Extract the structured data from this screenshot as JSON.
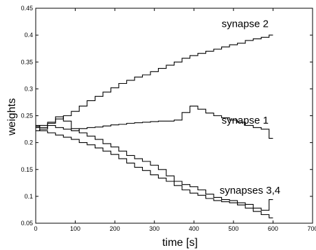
{
  "chart_data": {
    "type": "line",
    "title": "",
    "xlabel": "time [s]",
    "ylabel": "weights",
    "xlim": [
      0,
      700
    ],
    "ylim": [
      0.05,
      0.45
    ],
    "x_ticks": [
      "0",
      "100",
      "200",
      "300",
      "400",
      "500",
      "600",
      "700"
    ],
    "y_ticks": [
      "0.05",
      "0.1",
      "0.15",
      "0.2",
      "0.25",
      "0.3",
      "0.35",
      "0.4",
      "0.45"
    ],
    "grid": false,
    "legend": "none",
    "line_color": "#000000",
    "annotations": [
      {
        "text": "synapse 2",
        "x": 470,
        "y": 0.415
      },
      {
        "text": "synapse 1",
        "x": 470,
        "y": 0.235
      },
      {
        "text": "synapses 3,4",
        "x": 465,
        "y": 0.105
      }
    ],
    "series": [
      {
        "x": [
          0,
          20,
          40,
          60,
          80,
          100,
          120,
          140,
          160,
          180,
          200,
          220,
          240,
          260,
          280,
          300,
          320,
          340,
          360,
          380,
          400,
          420,
          440,
          460,
          480,
          500,
          520,
          540,
          560,
          580,
          600
        ],
        "values": [
          0.23,
          0.228,
          0.232,
          0.228,
          0.225,
          0.222,
          0.226,
          0.228,
          0.229,
          0.231,
          0.233,
          0.234,
          0.236,
          0.237,
          0.238,
          0.239,
          0.24,
          0.24,
          0.242,
          0.256,
          0.268,
          0.262,
          0.255,
          0.25,
          0.246,
          0.242,
          0.238,
          0.232,
          0.228,
          0.225,
          0.208
        ]
      },
      {
        "x": [
          0,
          20,
          40,
          60,
          80,
          100,
          120,
          140,
          160,
          180,
          200,
          220,
          240,
          260,
          280,
          300,
          320,
          340,
          360,
          380,
          400,
          420,
          440,
          460,
          480,
          500,
          520,
          540,
          560,
          580,
          600
        ],
        "values": [
          0.228,
          0.232,
          0.238,
          0.244,
          0.25,
          0.258,
          0.268,
          0.278,
          0.286,
          0.294,
          0.302,
          0.31,
          0.316,
          0.322,
          0.326,
          0.332,
          0.338,
          0.344,
          0.35,
          0.357,
          0.362,
          0.366,
          0.37,
          0.374,
          0.378,
          0.382,
          0.385,
          0.39,
          0.393,
          0.396,
          0.4
        ]
      },
      {
        "x": [
          0,
          20,
          40,
          60,
          80,
          100,
          120,
          140,
          160,
          180,
          200,
          220,
          240,
          260,
          280,
          300,
          320,
          340,
          360,
          380,
          400,
          420,
          440,
          460,
          480,
          500,
          520,
          540,
          560,
          580,
          600
        ],
        "values": [
          0.222,
          0.225,
          0.236,
          0.248,
          0.24,
          0.226,
          0.218,
          0.212,
          0.206,
          0.198,
          0.192,
          0.184,
          0.176,
          0.17,
          0.165,
          0.158,
          0.15,
          0.138,
          0.128,
          0.122,
          0.118,
          0.112,
          0.104,
          0.098,
          0.094,
          0.092,
          0.088,
          0.085,
          0.078,
          0.074,
          0.094
        ]
      },
      {
        "x": [
          0,
          20,
          40,
          60,
          80,
          100,
          120,
          140,
          160,
          180,
          200,
          220,
          240,
          260,
          280,
          300,
          320,
          340,
          360,
          380,
          400,
          420,
          440,
          460,
          480,
          500,
          520,
          540,
          560,
          580,
          600
        ],
        "values": [
          0.232,
          0.222,
          0.218,
          0.214,
          0.21,
          0.206,
          0.2,
          0.196,
          0.19,
          0.184,
          0.178,
          0.17,
          0.162,
          0.154,
          0.148,
          0.14,
          0.134,
          0.128,
          0.12,
          0.112,
          0.106,
          0.102,
          0.096,
          0.092,
          0.09,
          0.088,
          0.084,
          0.078,
          0.072,
          0.066,
          0.06
        ]
      }
    ]
  }
}
